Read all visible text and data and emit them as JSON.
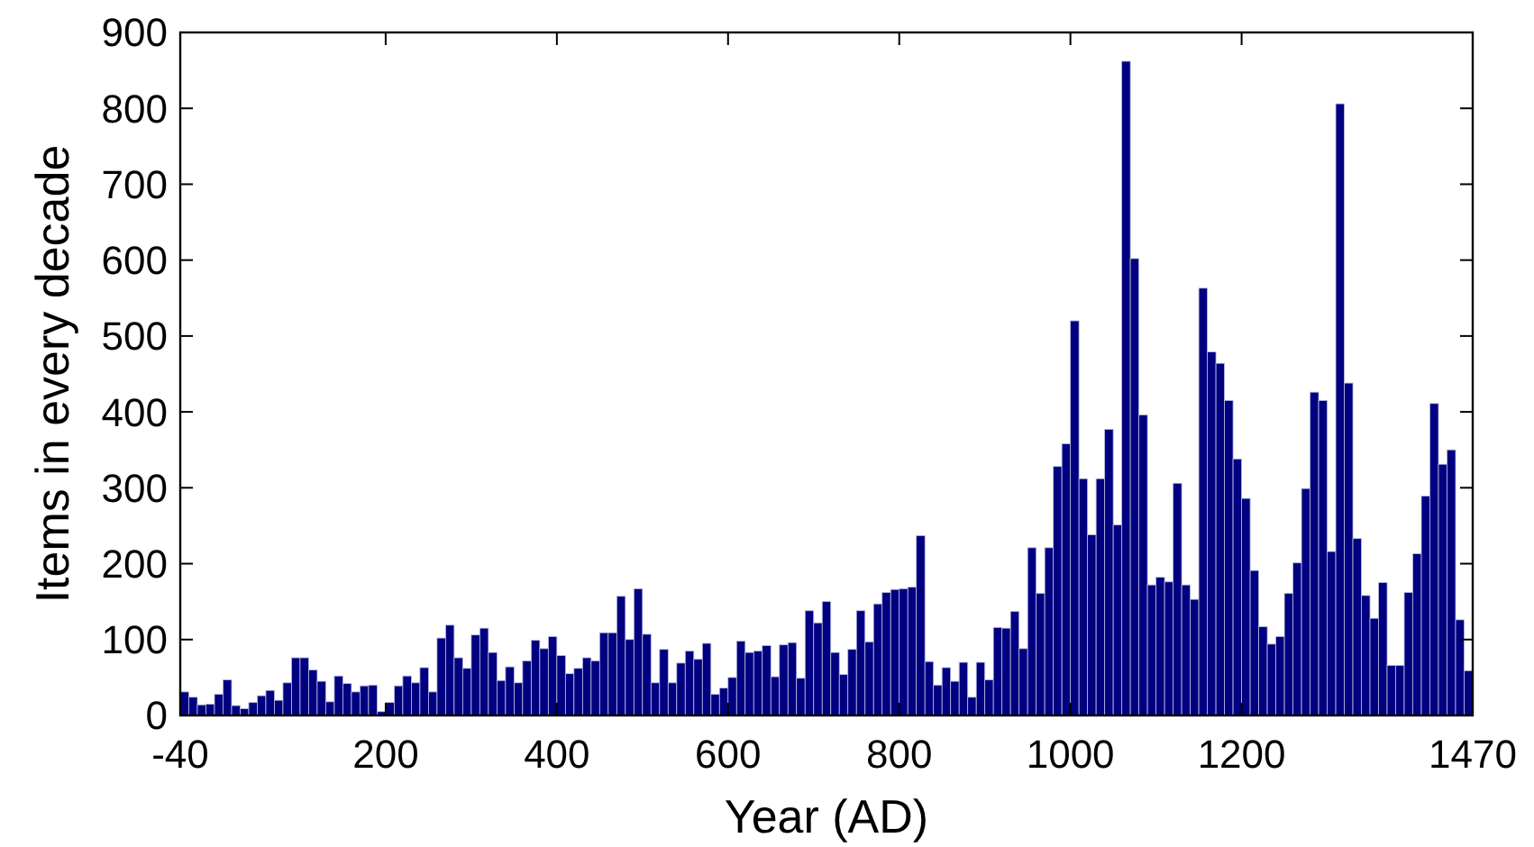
{
  "chart_data": {
    "type": "histogram",
    "xlabel": "Year (AD)",
    "ylabel": "Items in every decade",
    "color": "#000080",
    "bins": [
      -40,
      -30,
      -20,
      -10,
      0,
      10,
      20,
      30,
      40,
      50,
      60,
      70,
      80,
      90,
      100,
      110,
      120,
      130,
      140,
      150,
      160,
      170,
      180,
      190,
      200,
      210,
      220,
      230,
      240,
      250,
      260,
      270,
      280,
      290,
      300,
      310,
      320,
      330,
      340,
      350,
      360,
      370,
      380,
      390,
      400,
      410,
      420,
      430,
      440,
      450,
      460,
      470,
      480,
      490,
      500,
      510,
      520,
      530,
      540,
      550,
      560,
      570,
      580,
      590,
      600,
      610,
      620,
      630,
      640,
      650,
      660,
      670,
      680,
      690,
      700,
      710,
      720,
      730,
      740,
      750,
      760,
      770,
      780,
      790,
      800,
      810,
      820,
      830,
      840,
      850,
      860,
      870,
      880,
      890,
      900,
      910,
      920,
      930,
      940,
      950,
      960,
      970,
      980,
      990,
      1000,
      1010,
      1020,
      1030,
      1040,
      1050,
      1060,
      1070,
      1080,
      1090,
      1100,
      1110,
      1120,
      1130,
      1140,
      1150,
      1160,
      1170,
      1180,
      1190,
      1200,
      1210,
      1220,
      1230,
      1240,
      1250,
      1260,
      1270,
      1280,
      1290,
      1300,
      1310,
      1320,
      1330,
      1340,
      1350,
      1360,
      1370,
      1380,
      1390,
      1400,
      1410,
      1420,
      1430,
      1440,
      1450,
      1460,
      1470
    ],
    "values": [
      31,
      24,
      14,
      15,
      28,
      47,
      13,
      9,
      17,
      26,
      33,
      20,
      43,
      76,
      76,
      60,
      45,
      18,
      52,
      42,
      31,
      39,
      40,
      5,
      17,
      39,
      52,
      43,
      63,
      31,
      102,
      119,
      76,
      62,
      106,
      115,
      83,
      46,
      64,
      43,
      72,
      99,
      88,
      104,
      79,
      55,
      62,
      76,
      72,
      109,
      109,
      157,
      100,
      167,
      107,
      43,
      87,
      43,
      69,
      85,
      74,
      95,
      28,
      36,
      50,
      98,
      83,
      85,
      92,
      51,
      93,
      96,
      49,
      138,
      122,
      150,
      83,
      54,
      87,
      138,
      97,
      147,
      162,
      166,
      167,
      169,
      237,
      71,
      40,
      63,
      45,
      70,
      24,
      70,
      47,
      116,
      115,
      137,
      88,
      221,
      161,
      221,
      328,
      358,
      520,
      312,
      238,
      312,
      377,
      251,
      862,
      602,
      396,
      172,
      182,
      176,
      306,
      172,
      153,
      563,
      479,
      464,
      415,
      338,
      286,
      191,
      117,
      94,
      104,
      161,
      201,
      299,
      426,
      415,
      216,
      806,
      438,
      233,
      158,
      128,
      175,
      66,
      66,
      162,
      213,
      289,
      411,
      331,
      350,
      126,
      59
    ],
    "xlim": [
      -40,
      1470
    ],
    "xticks": [
      -40,
      200,
      400,
      600,
      800,
      1000,
      1200,
      1470
    ],
    "ylim": [
      0,
      900
    ],
    "yticks": [
      0,
      100,
      200,
      300,
      400,
      500,
      600,
      700,
      800,
      900
    ]
  }
}
